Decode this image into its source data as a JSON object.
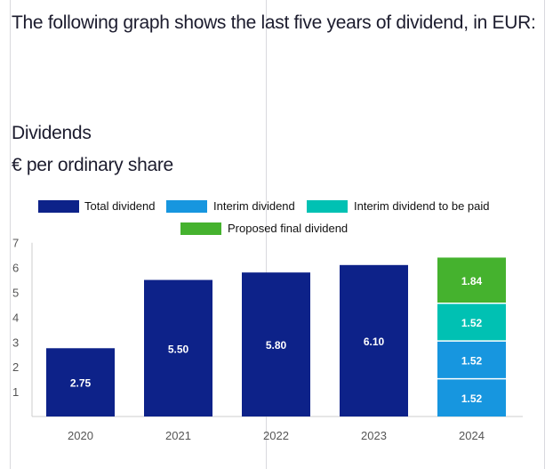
{
  "intro_text": "The following graph shows the last five years of dividend, in EUR:",
  "chart_title": "Dividends",
  "chart_subtitle": "€ per ordinary share",
  "colors": {
    "total": "#0d2289",
    "interim": "#1796df",
    "interim_to_be_paid": "#00c1b3",
    "proposed_final": "#45b22e",
    "axis": "#cccccc",
    "tick_text": "#555555",
    "text": "#1c1c2e"
  },
  "chart_data": {
    "type": "bar",
    "stacked": true,
    "categories": [
      "2020",
      "2021",
      "2022",
      "2023",
      "2024"
    ],
    "series": [
      {
        "name": "Total dividend",
        "values": [
          2.75,
          5.5,
          5.8,
          6.1,
          null
        ],
        "labels": [
          "2.75",
          "5.50",
          "5.80",
          "6.10",
          ""
        ]
      },
      {
        "name": "Interim dividend",
        "values": [
          null,
          null,
          null,
          null,
          3.04
        ],
        "segments": [
          1.52,
          1.52
        ],
        "labels": [
          "1.52",
          "1.52"
        ]
      },
      {
        "name": "Interim dividend to be paid",
        "values": [
          null,
          null,
          null,
          null,
          1.52
        ],
        "labels": [
          "1.52"
        ]
      },
      {
        "name": "Proposed final dividend",
        "values": [
          null,
          null,
          null,
          null,
          1.84
        ],
        "labels": [
          "1.84"
        ]
      }
    ],
    "yticks": [
      "1",
      "2",
      "3",
      "4",
      "5",
      "6",
      "7"
    ],
    "ylim": [
      0,
      7
    ],
    "grid": false,
    "legend_position": "top"
  }
}
